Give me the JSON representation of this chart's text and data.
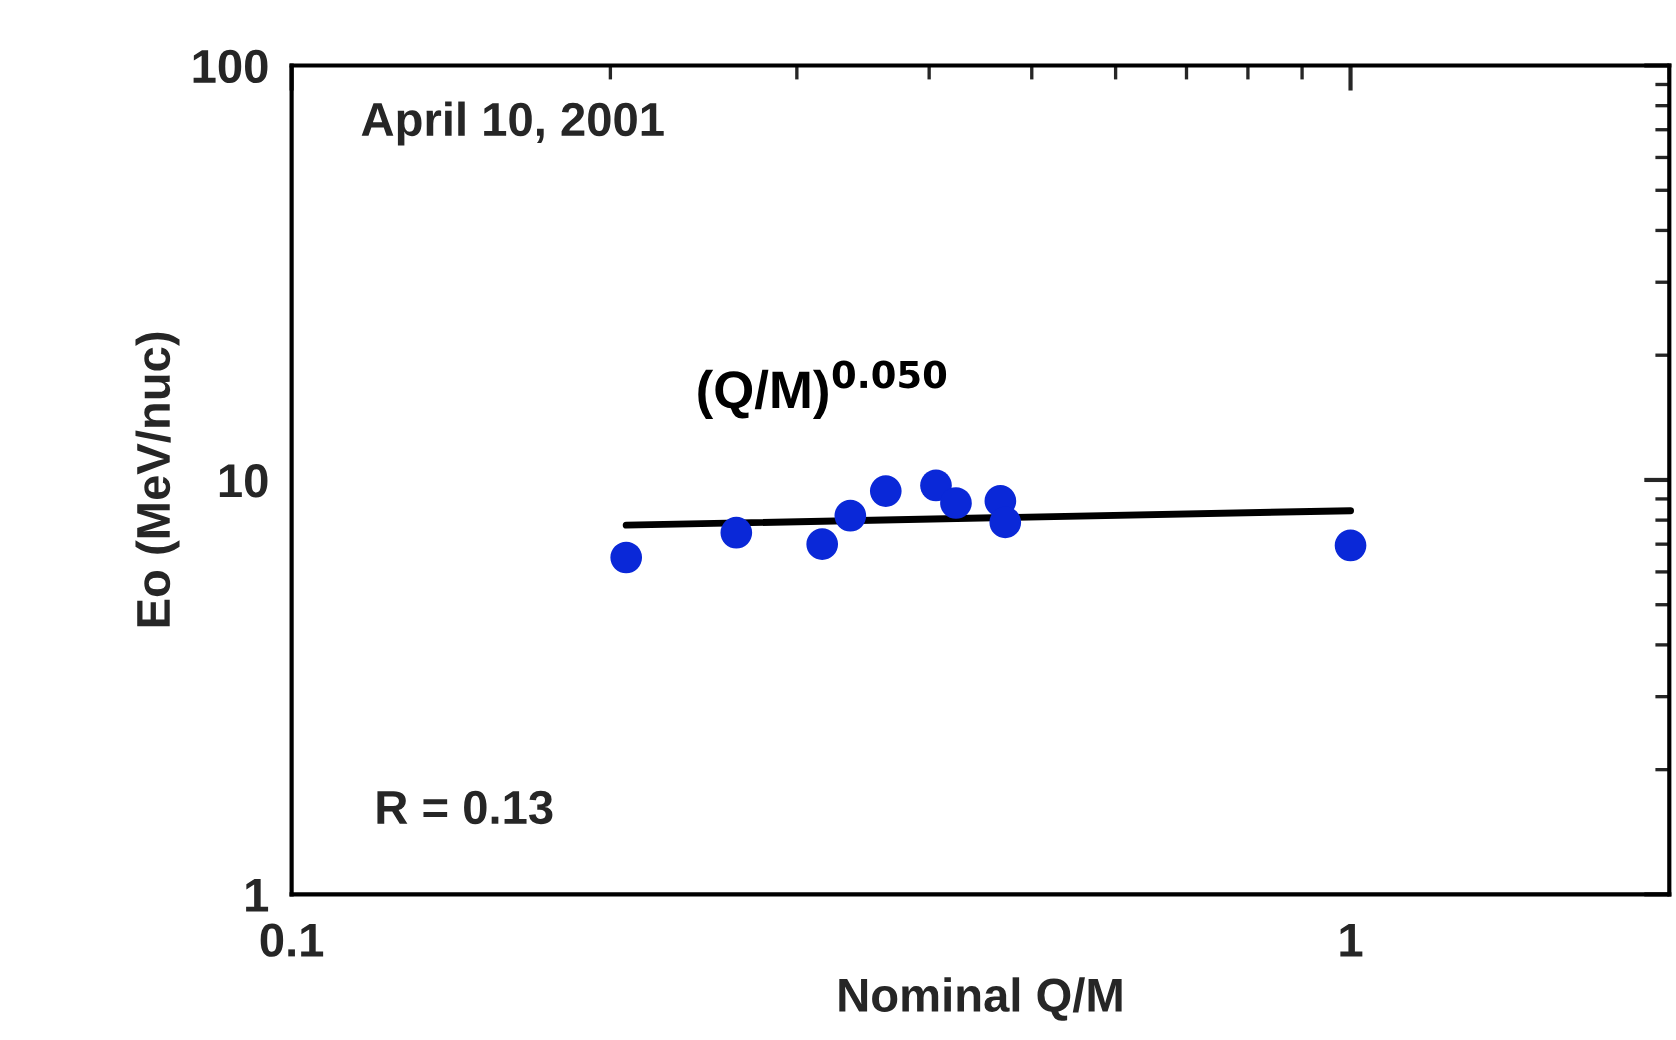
{
  "chart_data": {
    "type": "scatter",
    "xlabel": "Nominal Q/M",
    "ylabel": "Eo (MeV/nuc)",
    "log": "xy",
    "xlim": [
      0.1,
      2
    ],
    "ylim": [
      1,
      100
    ],
    "xticks": [
      0.1,
      1
    ],
    "yticks": [
      1,
      10,
      100
    ],
    "grid": false,
    "legend": false,
    "series": [
      {
        "marker": "circle",
        "color": "#0a28d8",
        "x": [
          0.207,
          0.263,
          0.317,
          0.337,
          0.364,
          0.406,
          0.424,
          0.467,
          0.472,
          1.0
        ],
        "values": [
          6.5,
          7.46,
          7.0,
          8.2,
          9.4,
          9.7,
          8.8,
          8.9,
          7.9,
          6.95
        ]
      },
      {
        "type": "line",
        "name": "(Q/M)$^{0.050}$",
        "color": "#000000",
        "x": [
          0.207,
          1.0
        ],
        "values": [
          7.78,
          8.43
        ],
        "line_style": "solid",
        "marker": "none"
      }
    ],
    "annotations": [
      "April 10, 2001",
      "R = 0.13"
    ]
  }
}
